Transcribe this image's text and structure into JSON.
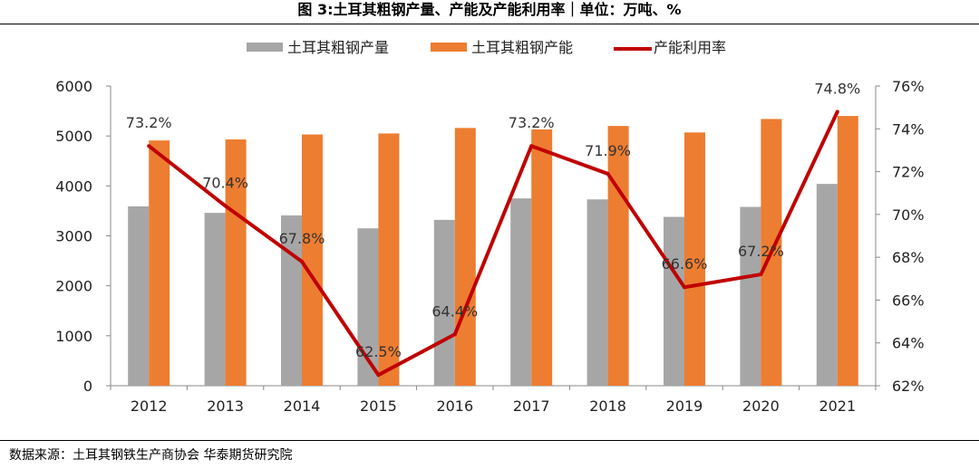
{
  "header": {
    "title": "图 3:土耳其粗钢产量、产能及产能利用率｜单位：万吨、%"
  },
  "footer": {
    "source": "数据来源：土耳其钢铁生产商协会 华泰期货研究院"
  },
  "colors": {
    "production": "#A6A6A6",
    "capacity": "#ED7D31",
    "utilization": "#C00000"
  },
  "chart_data": {
    "type": "bar",
    "title": "",
    "categories": [
      "2012",
      "2013",
      "2014",
      "2015",
      "2016",
      "2017",
      "2018",
      "2019",
      "2020",
      "2021"
    ],
    "series": [
      {
        "name": "土耳其粗钢产量",
        "type": "bar",
        "axis": "left",
        "values": [
          3590,
          3460,
          3410,
          3150,
          3320,
          3750,
          3730,
          3380,
          3580,
          4040
        ]
      },
      {
        "name": "土耳其粗钢产能",
        "type": "bar",
        "axis": "left",
        "values": [
          4910,
          4930,
          5030,
          5050,
          5160,
          5130,
          5200,
          5070,
          5340,
          5400
        ]
      },
      {
        "name": "产能利用率",
        "type": "line",
        "axis": "right",
        "values": [
          73.2,
          70.4,
          67.8,
          62.5,
          64.4,
          73.2,
          71.9,
          66.6,
          67.2,
          74.8
        ],
        "labels": [
          "73.2%",
          "70.4%",
          "67.8%",
          "62.5%",
          "64.4%",
          "73.2%",
          "71.9%",
          "66.6%",
          "67.2%",
          "74.8%"
        ]
      }
    ],
    "y_left": {
      "ylim": [
        0,
        6000
      ],
      "ticks": [
        "0",
        "1000",
        "2000",
        "3000",
        "4000",
        "5000",
        "6000"
      ]
    },
    "y_right": {
      "ylim": [
        62,
        76
      ],
      "ticks": [
        "62%",
        "64%",
        "66%",
        "68%",
        "70%",
        "72%",
        "74%",
        "76%"
      ]
    },
    "grid": false,
    "legend": "top-center"
  }
}
